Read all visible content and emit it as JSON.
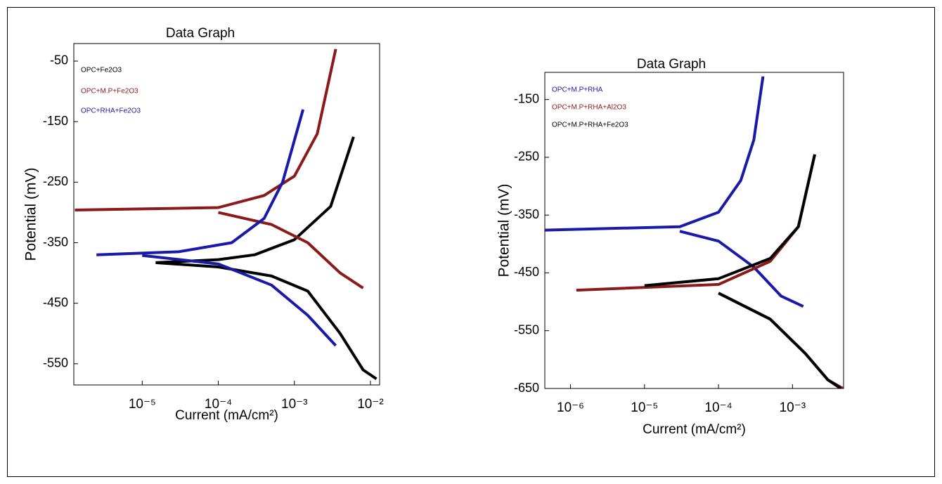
{
  "chart_data": [
    {
      "type": "line",
      "title": "Data Graph",
      "x_label": "Current (mA/cm²)",
      "y_label": "Potential (mV)",
      "xscale": "log",
      "xlim": [
        1.26e-06,
        0.0132
      ],
      "ylim": [
        -585,
        -21
      ],
      "xticks": [
        {
          "value": 1e-05,
          "label": "10⁻⁵"
        },
        {
          "value": 0.0001,
          "label": "10⁻⁴"
        },
        {
          "value": 0.001,
          "label": "10⁻³"
        },
        {
          "value": 0.01,
          "label": "10⁻²"
        }
      ],
      "yticks": [
        -50,
        -150,
        -250,
        -350,
        -450,
        -550
      ],
      "series": [
        {
          "name": "OPC+Fe2O3",
          "color": "#000000",
          "x": [
            1.5e-05,
            0.0001,
            0.0003,
            0.001,
            0.003,
            0.006,
            null,
            1.5e-05,
            0.0001,
            0.0005,
            0.0015,
            0.004,
            0.008,
            0.012
          ],
          "values": [
            -383,
            -378,
            -370,
            -345,
            -290,
            -175,
            null,
            -383,
            -390,
            -405,
            -430,
            -500,
            -560,
            -575
          ]
        },
        {
          "name": "OPC+M.P+Fe2O3",
          "color": "#8b1a1a",
          "x": [
            1.3e-06,
            0.0001,
            0.0004,
            0.001,
            0.002,
            0.0035,
            null,
            0.0001,
            0.0005,
            0.0015,
            0.004,
            0.008
          ],
          "values": [
            -296,
            -292,
            -272,
            -240,
            -170,
            -30,
            null,
            -300,
            -320,
            -350,
            -400,
            -425
          ]
        },
        {
          "name": "OPC+RHA+Fe2O3",
          "color": "#1a1aa8",
          "x": [
            2.5e-06,
            3e-05,
            0.00015,
            0.0004,
            0.0007,
            0.0013,
            null,
            1e-05,
            0.0001,
            0.0005,
            0.0015,
            0.0035
          ],
          "values": [
            -370,
            -365,
            -350,
            -310,
            -250,
            -130,
            null,
            -371,
            -385,
            -420,
            -470,
            -520
          ]
        }
      ]
    },
    {
      "type": "line",
      "title": "Data Graph",
      "x_label": "Current (mA/cm²)",
      "y_label": "Potential (mV)",
      "xscale": "log",
      "xlim": [
        4.5e-07,
        0.0049
      ],
      "ylim": [
        -650,
        -103
      ],
      "xticks": [
        {
          "value": 1e-06,
          "label": "10⁻⁶"
        },
        {
          "value": 1e-05,
          "label": "10⁻⁵"
        },
        {
          "value": 0.0001,
          "label": "10⁻⁴"
        },
        {
          "value": 0.001,
          "label": "10⁻³"
        }
      ],
      "yticks": [
        -150,
        -250,
        -350,
        -450,
        -550,
        -650
      ],
      "series": [
        {
          "name": "OPC+M.P+RHA",
          "color": "#1a1aa8",
          "x": [
            4.5e-07,
            3e-05,
            0.0001,
            0.0002,
            0.0003,
            0.0004,
            null,
            3e-05,
            0.0001,
            0.0003,
            0.0007,
            0.0014
          ],
          "values": [
            -376,
            -370,
            -345,
            -290,
            -220,
            -110,
            null,
            -378,
            -395,
            -440,
            -490,
            -508
          ]
        },
        {
          "name": "OPC+M.P+RHA+Al2O3",
          "color": "#8b1a1a",
          "x": [
            1.2e-06,
            0.0001,
            0.0005,
            0.0012,
            0.002,
            null,
            0.0001,
            0.0005,
            0.0015,
            0.003,
            0.0048
          ],
          "values": [
            -480,
            -470,
            -430,
            -370,
            -245,
            null,
            -485,
            -530,
            -590,
            -635,
            -650
          ]
        },
        {
          "name": "OPC+M.P+RHA+Fe2O3",
          "color": "#000000",
          "x": [
            1e-05,
            0.0001,
            0.0005,
            0.0012,
            0.002,
            null,
            0.0001,
            0.0005,
            0.0015,
            0.003,
            0.0045
          ],
          "values": [
            -472,
            -460,
            -425,
            -370,
            -245,
            null,
            -485,
            -530,
            -590,
            -635,
            -650
          ]
        }
      ]
    }
  ]
}
